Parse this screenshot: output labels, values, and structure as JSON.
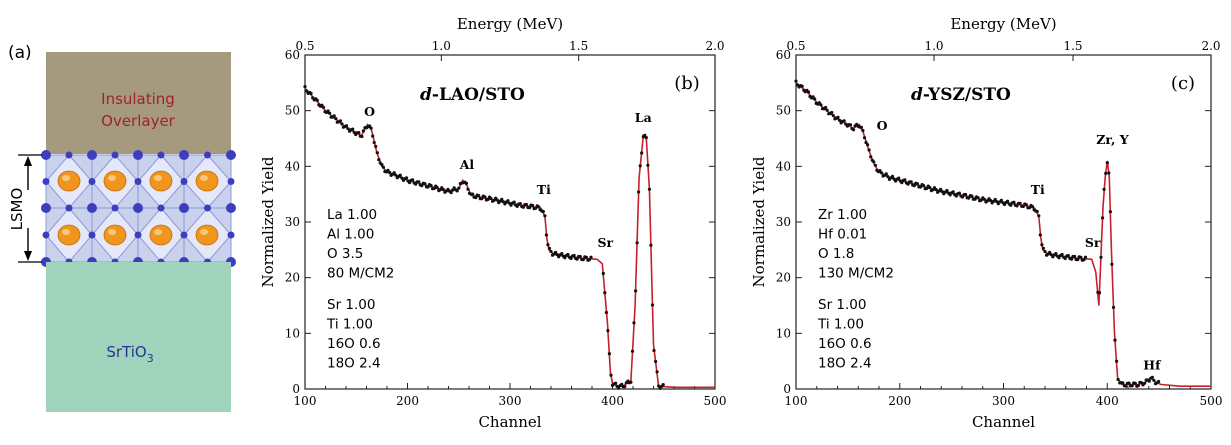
{
  "panel_a": {
    "label": "(a)",
    "overlayer_line1": "Insulating",
    "overlayer_line2": "Overlayer",
    "lsmo_label": "LSMO",
    "substrate_label": "SrTiO",
    "substrate_sub": "3",
    "colors": {
      "overlayer": "#a59a7e",
      "overlayer_text": "#a0232a",
      "lsmo": "#c9d1ec",
      "substrate": "#9fd3bb",
      "substrate_text": "#27358f",
      "atom_blue": "#3b3fbf",
      "atom_orange": "#f0961e"
    }
  },
  "chart_data": [
    {
      "type": "line",
      "panel_label": "(b)",
      "title": "d-LAO/STO",
      "title_italic": "d",
      "title_rest": "-LAO/STO",
      "xlabel": "Channel",
      "ylabel": "Normalized Yield",
      "x2label": "Energy (MeV)",
      "xlim": [
        100,
        500
      ],
      "ylim": [
        0,
        60
      ],
      "x_ticks": [
        "100",
        "200",
        "300",
        "400",
        "500"
      ],
      "y_ticks": [
        "0",
        "10",
        "20",
        "30",
        "40",
        "50",
        "60"
      ],
      "x2_ticks": [
        {
          "label": "0.5",
          "channel": 100
        },
        {
          "label": "1.0",
          "channel": 233
        },
        {
          "label": "1.5",
          "channel": 367
        },
        {
          "label": "2.0",
          "channel": 500
        }
      ],
      "grid": false,
      "colors": {
        "fit": "#c8202a",
        "data": "#111111"
      },
      "composition_block1": [
        "La   1.00",
        "Al   1.00",
        "O   3.5",
        "80 M/CM2"
      ],
      "composition_block2": [
        "Sr   1.00",
        "Ti   1.00",
        "16O   0.6",
        "18O   2.4"
      ],
      "annotations": [
        {
          "text": "O",
          "x": 163,
          "y": 49
        },
        {
          "text": "Al",
          "x": 258,
          "y": 39.5
        },
        {
          "text": "Ti",
          "x": 333,
          "y": 35
        },
        {
          "text": "Sr",
          "x": 393,
          "y": 25.5
        },
        {
          "text": "La",
          "x": 430,
          "y": 48
        }
      ],
      "series": [
        {
          "x": [
            100,
            110,
            120,
            130,
            140,
            150,
            155,
            158,
            161,
            165,
            170,
            175,
            180,
            190,
            200,
            220,
            240,
            250,
            254,
            258,
            262,
            270,
            290,
            310,
            320,
            330,
            334,
            336,
            338,
            342,
            350,
            370,
            385,
            390,
            395,
            398,
            400,
            405,
            410,
            418,
            422,
            426,
            430,
            433,
            436,
            440,
            445,
            460,
            480,
            500
          ],
          "y": [
            54,
            52,
            50,
            48.5,
            47,
            46,
            45.5,
            46.5,
            47.5,
            46.5,
            42.5,
            40,
            39,
            38.3,
            37.5,
            36.5,
            35.5,
            36,
            37.5,
            36.5,
            34.8,
            34.5,
            33.8,
            33,
            32.8,
            32.5,
            31,
            27,
            25,
            24.3,
            24,
            23.5,
            23.3,
            22.5,
            12,
            3,
            1,
            0.5,
            0.5,
            1.5,
            15,
            38,
            45.5,
            45,
            36,
            8,
            0.5,
            0.3,
            0.3,
            0.3
          ]
        }
      ]
    },
    {
      "type": "line",
      "panel_label": "(c)",
      "title": "d-YSZ/STO",
      "title_italic": "d",
      "title_rest": "-YSZ/STO",
      "xlabel": "Channel",
      "ylabel": "Normalized Yield",
      "x2label": "Energy (MeV)",
      "xlim": [
        100,
        500
      ],
      "ylim": [
        0,
        60
      ],
      "x_ticks": [
        "100",
        "200",
        "300",
        "400",
        "500"
      ],
      "y_ticks": [
        "0",
        "10",
        "20",
        "30",
        "40",
        "50",
        "60"
      ],
      "x2_ticks": [
        {
          "label": "0.5",
          "channel": 100
        },
        {
          "label": "1.0",
          "channel": 233
        },
        {
          "label": "1.5",
          "channel": 367
        },
        {
          "label": "2.0",
          "channel": 500
        }
      ],
      "grid": false,
      "colors": {
        "fit": "#c8202a",
        "data": "#111111"
      },
      "composition_block1": [
        "Zr   1.00",
        "Hf   0.01",
        "O   1.8",
        "130 M/CM2"
      ],
      "composition_block2": [
        "Sr   1.00",
        "Ti   1.00",
        "16O   0.6",
        "18O   2.4"
      ],
      "annotations": [
        {
          "text": "O",
          "x": 183,
          "y": 46.5
        },
        {
          "text": "Ti",
          "x": 333,
          "y": 35
        },
        {
          "text": "Sr",
          "x": 386,
          "y": 25.5
        },
        {
          "text": "Zr, Y",
          "x": 405,
          "y": 44
        },
        {
          "text": "Hf",
          "x": 443,
          "y": 3.5
        }
      ],
      "series": [
        {
          "x": [
            100,
            110,
            120,
            130,
            140,
            150,
            155,
            158,
            161,
            165,
            170,
            175,
            180,
            190,
            200,
            220,
            240,
            260,
            280,
            300,
            320,
            330,
            334,
            336,
            338,
            342,
            350,
            370,
            385,
            389,
            392,
            394,
            396,
            398,
            400,
            402,
            404,
            407,
            410,
            414,
            420,
            430,
            437,
            442,
            447,
            452,
            470,
            500
          ],
          "y": [
            55,
            53.5,
            51.5,
            50,
            48.5,
            47.5,
            46.8,
            47.2,
            47.5,
            46,
            43,
            40.5,
            39,
            38,
            37.5,
            36.5,
            35.5,
            34.8,
            34,
            33.5,
            33,
            32.5,
            31,
            27,
            25,
            24.3,
            24,
            23.5,
            23.3,
            21,
            15,
            24,
            33,
            38,
            41,
            38,
            25,
            10,
            2,
            0.8,
            0.8,
            0.8,
            1.2,
            2,
            1.2,
            0.8,
            0.5,
            0.5
          ]
        }
      ]
    }
  ]
}
